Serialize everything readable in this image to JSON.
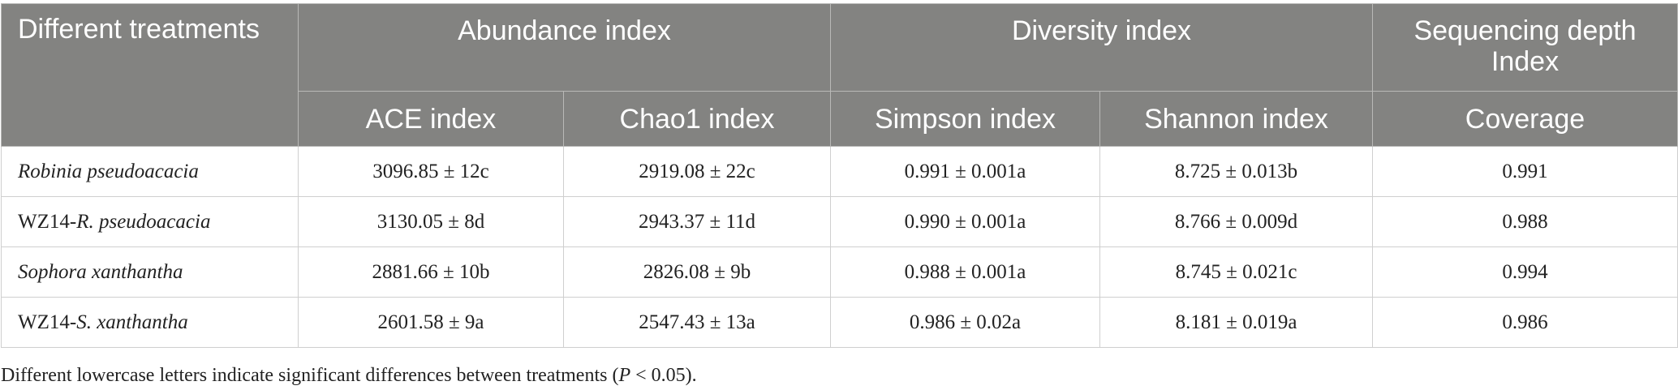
{
  "headers": {
    "corner": "Different treatments",
    "groups": {
      "abundance": "Abundance index",
      "diversity": "Diversity index",
      "depth": "Sequencing depth Index"
    },
    "columns": {
      "ace": "ACE index",
      "chao1": "Chao1 index",
      "simpson": "Simpson index",
      "shannon": "Shannon index",
      "coverage": "Coverage"
    }
  },
  "rows": [
    {
      "name_prefix": "",
      "name_italic": "Robinia pseudoacacia",
      "ace": "3096.85 ± 12c",
      "chao1": "2919.08 ± 22c",
      "simpson": "0.991 ± 0.001a",
      "shannon": "8.725 ± 0.013b",
      "coverage": "0.991"
    },
    {
      "name_prefix": "WZ14-",
      "name_italic": "R. pseudoacacia",
      "ace": "3130.05 ± 8d",
      "chao1": "2943.37 ± 11d",
      "simpson": "0.990 ± 0.001a",
      "shannon": "8.766 ± 0.009d",
      "coverage": "0.988"
    },
    {
      "name_prefix": "",
      "name_italic": "Sophora xanthantha",
      "ace": "2881.66 ± 10b",
      "chao1": "2826.08 ± 9b",
      "simpson": "0.988 ± 0.001a",
      "shannon": "8.745 ± 0.021c",
      "coverage": "0.994"
    },
    {
      "name_prefix": "WZ14-",
      "name_italic": "S. xanthantha",
      "ace": "2601.58 ± 9a",
      "chao1": "2547.43 ± 13a",
      "simpson": "0.986 ± 0.02a",
      "shannon": "8.181 ± 0.019a",
      "coverage": "0.986"
    }
  ],
  "footnote": {
    "before": "Different lowercase letters indicate significant differences between treatments (",
    "p": "P",
    "after": " < 0.05)."
  }
}
